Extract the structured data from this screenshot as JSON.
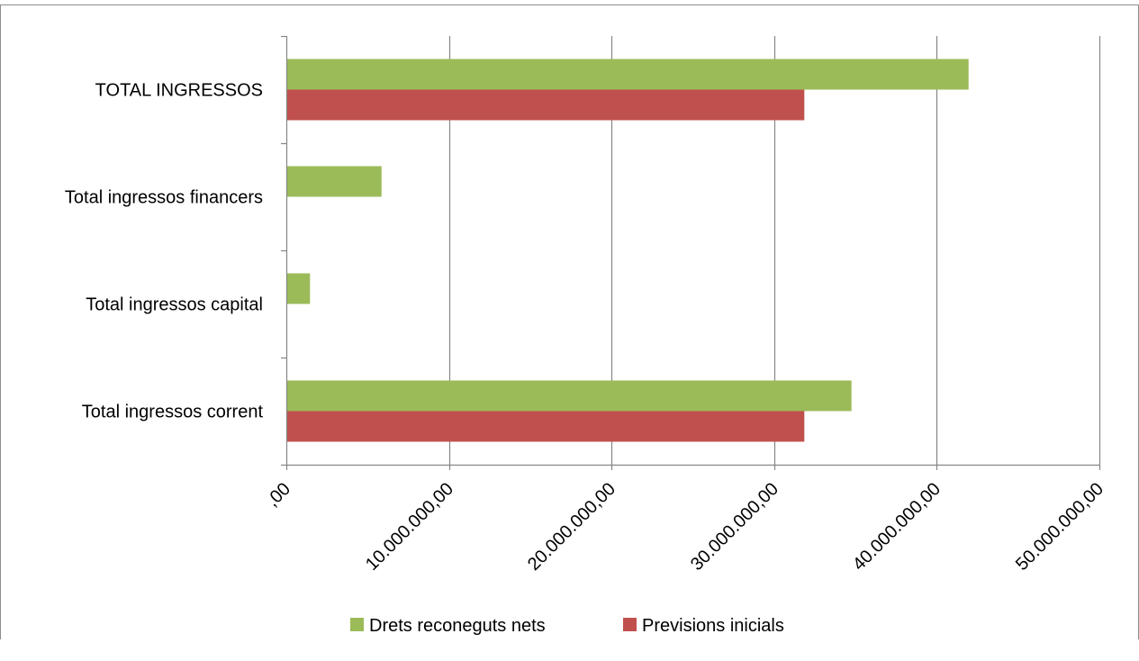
{
  "chart_data": {
    "type": "bar",
    "orientation": "horizontal",
    "categories": [
      "Total ingressos corrent",
      "Total ingressos capital",
      "Total ingressos financers",
      "TOTAL INGRESSOS"
    ],
    "series": [
      {
        "name": "Drets reconeguts nets",
        "color": "#9BBB59",
        "values": [
          34700000,
          1400000,
          5800000,
          41900000
        ]
      },
      {
        "name": "Previsions inicials",
        "color": "#C0504D",
        "values": [
          31800000,
          0,
          0,
          31800000
        ]
      }
    ],
    "xlim": [
      0,
      50000000
    ],
    "ticks": [
      {
        "value": 0,
        "label": ",00"
      },
      {
        "value": 10000000,
        "label": "10.000.000,00"
      },
      {
        "value": 20000000,
        "label": "20.000.000,00"
      },
      {
        "value": 30000000,
        "label": "30.000.000,00"
      },
      {
        "value": 40000000,
        "label": "40.000.000,00"
      },
      {
        "value": 50000000,
        "label": "50.000.000,00"
      }
    ],
    "grid": true,
    "legend_position": "bottom",
    "title": "",
    "xlabel": "",
    "ylabel": ""
  }
}
